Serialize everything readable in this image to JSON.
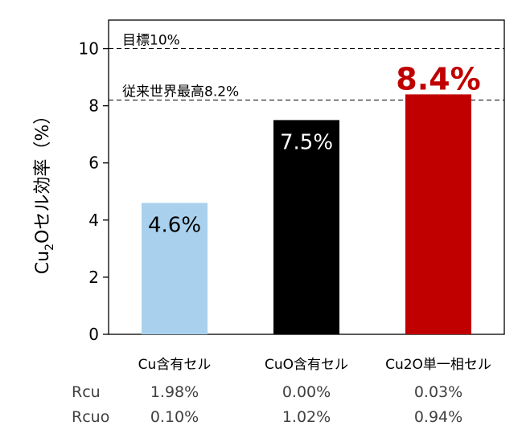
{
  "chart_data": {
    "type": "bar",
    "ylabel_main": "Cu",
    "ylabel_sub": "2",
    "ylabel_rest": "Oセル効率（%）",
    "ylim": [
      0,
      11
    ],
    "yticks": [
      0,
      2,
      4,
      6,
      8,
      10
    ],
    "grid": false,
    "categories": [
      "Cu含有セル",
      "CuO含有セル",
      "Cu2O単一相セル"
    ],
    "values": [
      4.6,
      7.5,
      8.4
    ],
    "value_labels": [
      "4.6%",
      "7.5%",
      "8.4%"
    ],
    "bar_colors": [
      "#a9d1ee",
      "#000000",
      "#c00000"
    ],
    "value_label_colors": [
      "#000000",
      "#ffffff",
      "#c00000"
    ],
    "reference_lines": [
      {
        "value": 10,
        "label": "目標10%"
      },
      {
        "value": 8.2,
        "label": "従来世界最高8.2%"
      }
    ]
  },
  "table": {
    "rows": [
      {
        "label": "Rcu",
        "values": [
          "1.98%",
          "0.00%",
          "0.03%"
        ]
      },
      {
        "label": "Rcuo",
        "values": [
          "0.10%",
          "1.02%",
          "0.94%"
        ]
      }
    ]
  }
}
